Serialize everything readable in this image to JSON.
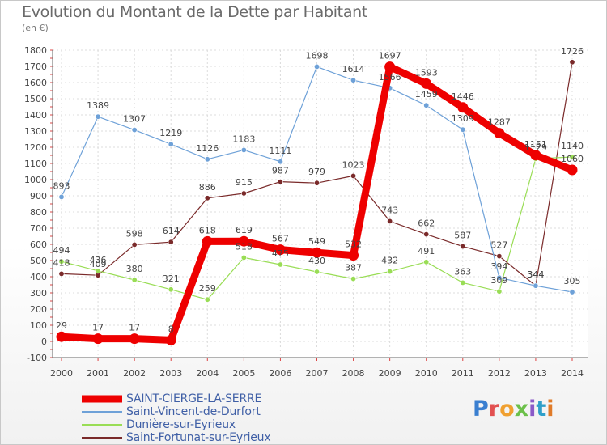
{
  "header": {
    "title": "Evolution du Montant de la Dette par Habitant",
    "subtitle": "(en €)"
  },
  "brand": {
    "name": "Proxiti"
  },
  "chart_data": {
    "type": "line",
    "title": "Evolution du Montant de la Dette par Habitant",
    "subtitle": "(en €)",
    "xlabel": "",
    "ylabel": "",
    "x": [
      "2000",
      "2001",
      "2002",
      "2003",
      "2004",
      "2005",
      "2006",
      "2007",
      "2008",
      "2009",
      "2010",
      "2011",
      "2012",
      "2013",
      "2014"
    ],
    "ylim": [
      -100,
      1800
    ],
    "yticks": [
      -100,
      0,
      100,
      200,
      300,
      400,
      500,
      600,
      700,
      800,
      900,
      1000,
      1100,
      1200,
      1300,
      1400,
      1500,
      1600,
      1700,
      1800
    ],
    "grid": true,
    "legend_position": "bottom-left",
    "series": [
      {
        "name": "SAINT-CIERGE-LA-SERRE",
        "color": "#ee0000",
        "emphasis": true,
        "values": [
          29,
          17,
          17,
          8,
          618,
          619,
          567,
          549,
          532,
          1697,
          1593,
          1446,
          1287,
          1151,
          1060
        ]
      },
      {
        "name": "Saint-Vincent-de-Durfort",
        "color": "#6ea1d8",
        "emphasis": false,
        "values": [
          893,
          1389,
          1307,
          1219,
          1126,
          1183,
          1111,
          1698,
          1614,
          1566,
          1459,
          1309,
          394,
          344,
          305
        ]
      },
      {
        "name": "Dunière-sur-Eyrieux",
        "color": "#99dd55",
        "emphasis": false,
        "values": [
          494,
          436,
          380,
          321,
          259,
          518,
          475,
          430,
          387,
          432,
          491,
          363,
          309,
          1129,
          1140
        ]
      },
      {
        "name": "Saint-Fortunat-sur-Eyrieux",
        "color": "#7a2a2a",
        "emphasis": false,
        "values": [
          418,
          409,
          598,
          614,
          886,
          915,
          987,
          979,
          1023,
          743,
          662,
          587,
          527,
          344,
          1726
        ]
      }
    ]
  }
}
